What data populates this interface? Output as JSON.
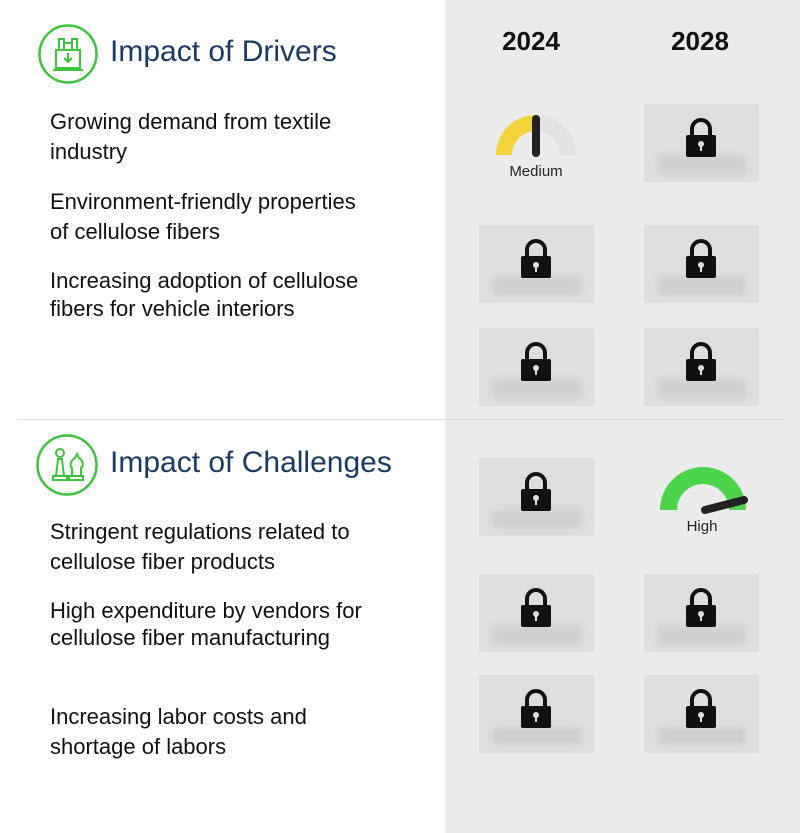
{
  "columns": {
    "year1": "2024",
    "year2": "2028"
  },
  "drivers": {
    "title": "Impact of Drivers",
    "icon": "factory-icon",
    "items": [
      {
        "text": "Growing demand from textile industry",
        "y2024": "Medium",
        "y2028": "locked"
      },
      {
        "text": "Environment-friendly properties of cellulose fibers",
        "y2024": "locked",
        "y2028": "locked"
      },
      {
        "text": "Increasing adoption of cellulose fibers for vehicle interiors",
        "y2024": "locked",
        "y2028": "locked"
      }
    ]
  },
  "challenges": {
    "title": "Impact of Challenges",
    "icon": "chess-icon",
    "items": [
      {
        "text": "Stringent regulations related to cellulose fiber products",
        "y2024": "locked",
        "y2028": "High"
      },
      {
        "text": "High expenditure by vendors for cellulose fiber manufacturing",
        "y2024": "locked",
        "y2028": "locked"
      },
      {
        "text": "Increasing labor costs and shortage of labors",
        "y2024": "locked",
        "y2028": "locked"
      }
    ]
  },
  "gauges": {
    "medium": {
      "label": "Medium",
      "color": "#f2d33c",
      "level": 0.5
    },
    "high": {
      "label": "High",
      "color": "#4cd34c",
      "level": 0.85
    }
  },
  "colors": {
    "accent_green": "#3cc43c",
    "title_blue": "#1b3a63",
    "panel_gray": "#ebebeb"
  }
}
